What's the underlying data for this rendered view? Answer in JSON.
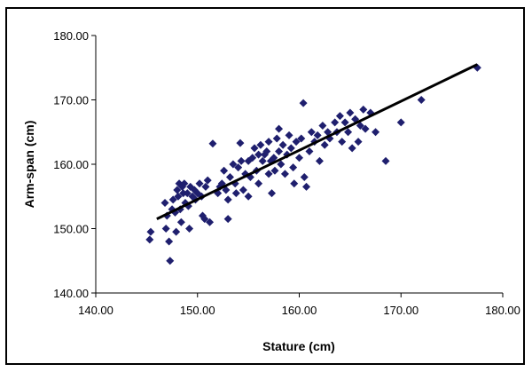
{
  "chart_data": {
    "type": "scatter",
    "title": "",
    "xlabel": "Stature (cm)",
    "ylabel": "Arm-span (cm)",
    "xlim": [
      140,
      180
    ],
    "ylim": [
      140,
      180
    ],
    "xticks": [
      "140.00",
      "150.00",
      "160.00",
      "170.00",
      "180.00"
    ],
    "yticks": [
      "140.00",
      "150.00",
      "160.00",
      "170.00",
      "180.00"
    ],
    "grid": false,
    "legend": "none",
    "marker": "diamond",
    "marker_color": "#1f1f6e",
    "trendline": {
      "x": [
        146,
        177.5
      ],
      "y": [
        151.5,
        175.5
      ],
      "color": "#000000"
    },
    "points": [
      [
        145.3,
        148.3
      ],
      [
        145.4,
        149.5
      ],
      [
        146.8,
        154.0
      ],
      [
        146.9,
        150.0
      ],
      [
        147.0,
        152.0
      ],
      [
        147.2,
        148.0
      ],
      [
        147.3,
        145.0
      ],
      [
        147.5,
        153.0
      ],
      [
        147.6,
        154.5
      ],
      [
        147.8,
        152.5
      ],
      [
        147.9,
        149.5
      ],
      [
        148.0,
        156.0
      ],
      [
        148.1,
        155.0
      ],
      [
        148.2,
        157.0
      ],
      [
        148.3,
        153.0
      ],
      [
        148.4,
        151.0
      ],
      [
        148.5,
        156.5
      ],
      [
        148.6,
        155.5
      ],
      [
        148.7,
        157.0
      ],
      [
        148.8,
        154.0
      ],
      [
        149.0,
        155.5
      ],
      [
        149.1,
        153.5
      ],
      [
        149.2,
        150.0
      ],
      [
        149.3,
        156.5
      ],
      [
        149.5,
        155.0
      ],
      [
        149.7,
        156.0
      ],
      [
        149.8,
        154.5
      ],
      [
        150.0,
        155.5
      ],
      [
        150.2,
        157.0
      ],
      [
        150.4,
        155.0
      ],
      [
        150.5,
        152.0
      ],
      [
        150.7,
        151.5
      ],
      [
        150.8,
        156.5
      ],
      [
        151.0,
        157.5
      ],
      [
        151.2,
        151.0
      ],
      [
        151.5,
        163.2
      ],
      [
        152.0,
        155.5
      ],
      [
        152.2,
        156.5
      ],
      [
        152.4,
        157.0
      ],
      [
        152.6,
        159.0
      ],
      [
        152.8,
        156.0
      ],
      [
        153.0,
        154.5
      ],
      [
        153.0,
        151.5
      ],
      [
        153.2,
        158.0
      ],
      [
        153.5,
        160.0
      ],
      [
        153.7,
        157.0
      ],
      [
        153.8,
        155.5
      ],
      [
        154.0,
        159.5
      ],
      [
        154.2,
        163.3
      ],
      [
        154.3,
        160.5
      ],
      [
        154.5,
        156.0
      ],
      [
        154.7,
        158.5
      ],
      [
        155.0,
        160.5
      ],
      [
        155.0,
        155.0
      ],
      [
        155.2,
        158.0
      ],
      [
        155.4,
        161.0
      ],
      [
        155.6,
        162.5
      ],
      [
        155.8,
        159.0
      ],
      [
        156.0,
        161.5
      ],
      [
        156.0,
        157.0
      ],
      [
        156.2,
        163.0
      ],
      [
        156.4,
        160.5
      ],
      [
        156.6,
        161.5
      ],
      [
        156.8,
        162.0
      ],
      [
        157.0,
        158.5
      ],
      [
        157.0,
        163.5
      ],
      [
        157.2,
        160.5
      ],
      [
        157.3,
        155.5
      ],
      [
        157.5,
        161.0
      ],
      [
        157.6,
        159.0
      ],
      [
        157.8,
        164.0
      ],
      [
        158.0,
        162.0
      ],
      [
        158.0,
        165.5
      ],
      [
        158.2,
        160.0
      ],
      [
        158.4,
        163.0
      ],
      [
        158.6,
        158.5
      ],
      [
        158.8,
        161.5
      ],
      [
        159.0,
        164.5
      ],
      [
        159.2,
        162.5
      ],
      [
        159.4,
        159.5
      ],
      [
        159.5,
        157.0
      ],
      [
        159.7,
        163.5
      ],
      [
        160.0,
        161.0
      ],
      [
        160.2,
        164.0
      ],
      [
        160.4,
        169.5
      ],
      [
        160.5,
        158.0
      ],
      [
        160.7,
        156.5
      ],
      [
        161.0,
        162.0
      ],
      [
        161.2,
        165.0
      ],
      [
        161.5,
        163.5
      ],
      [
        161.8,
        164.5
      ],
      [
        162.0,
        160.5
      ],
      [
        162.3,
        166.0
      ],
      [
        162.5,
        163.0
      ],
      [
        162.8,
        165.0
      ],
      [
        163.0,
        164.0
      ],
      [
        163.5,
        166.5
      ],
      [
        163.7,
        165.0
      ],
      [
        164.0,
        167.5
      ],
      [
        164.2,
        163.5
      ],
      [
        164.5,
        166.5
      ],
      [
        164.8,
        165.0
      ],
      [
        165.0,
        168.0
      ],
      [
        165.2,
        162.5
      ],
      [
        165.5,
        167.0
      ],
      [
        165.8,
        163.5
      ],
      [
        166.0,
        166.0
      ],
      [
        166.3,
        168.5
      ],
      [
        166.5,
        165.5
      ],
      [
        167.0,
        168.0
      ],
      [
        167.5,
        165.0
      ],
      [
        168.5,
        160.5
      ],
      [
        170.0,
        166.5
      ],
      [
        172.0,
        170.0
      ],
      [
        177.5,
        175.0
      ]
    ]
  }
}
